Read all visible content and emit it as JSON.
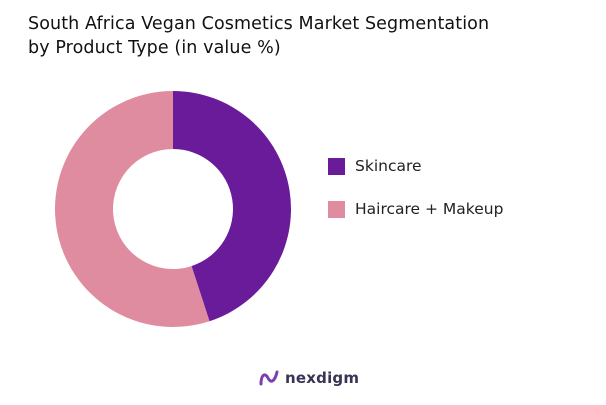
{
  "chart_data": {
    "type": "pie",
    "title_lines": [
      "South Africa Vegan Cosmetics Market Segmentation",
      "by Product Type (in value %)"
    ],
    "donut": true,
    "categories": [
      "Skincare",
      "Haircare + Makeup"
    ],
    "values": [
      45,
      55
    ],
    "colors": [
      "#6a1b9a",
      "#e08ca0"
    ],
    "legend_position": "right"
  },
  "brand": {
    "name": "nexdigm",
    "logo_color": "#7b3fb0"
  }
}
